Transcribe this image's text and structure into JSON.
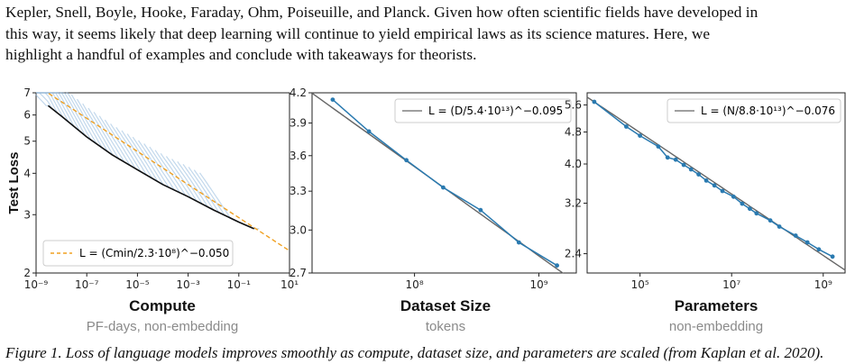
{
  "paragraph": {
    "line1": "Kepler, Snell, Boyle, Hooke, Faraday, Ohm, Poiseuille, and Planck. Given how often scientific fields have developed in",
    "line2": "this way, it seems likely that deep learning will continue to yield empirical laws as its science matures. Here, we",
    "line3": "highlight a handful of examples and conclude with takeaways for theorists."
  },
  "chart_data": [
    {
      "type": "line",
      "ylabel": "Test Loss",
      "xlabel": "Compute",
      "xsublabel": "PF-days, non-embedding",
      "xscale": "log",
      "yscale": "log",
      "xlim": [
        1e-09,
        10
      ],
      "ylim": [
        2,
        7
      ],
      "xticks": [
        "10⁻⁹",
        "10⁻⁷",
        "10⁻⁵",
        "10⁻³",
        "10⁻¹",
        "10¹"
      ],
      "yticks": [
        "2",
        "3",
        "4",
        "5",
        "6",
        "7"
      ],
      "legend": "L = (Cmin/2.3·10⁸)^−0.050",
      "legend_placement": "bottom-left",
      "fit": {
        "coef": 230000000.0,
        "exponent": -0.05,
        "color": "#f0a020"
      },
      "frontier": {
        "x": [
          3e-09,
          1e-08,
          1e-07,
          1e-06,
          1e-05,
          0.0001,
          0.001,
          0.01,
          0.1,
          0.4
        ],
        "y": [
          6.4,
          5.95,
          5.15,
          4.55,
          4.1,
          3.7,
          3.4,
          3.1,
          2.85,
          2.72
        ],
        "color": "#111111"
      },
      "curve_color": "#8fb8dc"
    },
    {
      "type": "line",
      "xlabel": "Dataset Size",
      "xsublabel": "tokens",
      "xscale": "log",
      "yscale": "log",
      "xlim": [
        15000000.0,
        2000000000.0
      ],
      "ylim": [
        2.7,
        4.2
      ],
      "xticks": [
        "10⁸",
        "10⁹"
      ],
      "yticks": [
        "2.7",
        "3.0",
        "3.3",
        "3.6",
        "3.9",
        "4.2"
      ],
      "legend": "L = (D/5.4·10¹³)^−0.095",
      "legend_placement": "top-right",
      "fit": {
        "coef": 54000000000000.0,
        "exponent": -0.095,
        "color": "#666666"
      },
      "series": [
        {
          "x": [
            22000000.0,
            43000000.0,
            86000000.0,
            170000000.0,
            340000000.0,
            690000000.0,
            1400000000.0
          ],
          "y": [
            4.13,
            3.82,
            3.56,
            3.33,
            3.15,
            2.91,
            2.75
          ],
          "color": "#2a7ab0"
        }
      ]
    },
    {
      "type": "line",
      "xlabel": "Parameters",
      "xsublabel": "non-embedding",
      "xscale": "log",
      "yscale": "log",
      "xlim": [
        7000.0,
        3000000000.0
      ],
      "ylim": [
        2.15,
        6.0
      ],
      "xticks": [
        "10⁵",
        "10⁷",
        "10⁹"
      ],
      "yticks": [
        "2.4",
        "3.2",
        "4.0",
        "4.8",
        "5.6"
      ],
      "legend": "L = (N/8.8·10¹³)^−0.076",
      "legend_placement": "top-right",
      "fit": {
        "coef": 88000000000000.0,
        "exponent": -0.076,
        "color": "#666666"
      },
      "series": [
        {
          "x": [
            10000.0,
            50000.0,
            100000.0,
            250000.0,
            400000.0,
            600000.0,
            900000.0,
            1300000.0,
            1900000.0,
            2800000.0,
            4200000.0,
            6300000.0,
            11000000.0,
            17000000.0,
            25000000.0,
            35000000.0,
            70000000.0,
            110000000.0,
            250000000.0,
            450000000.0,
            800000000.0,
            1600000000.0
          ],
          "y": [
            5.7,
            4.95,
            4.7,
            4.42,
            4.15,
            4.1,
            3.98,
            3.88,
            3.77,
            3.64,
            3.54,
            3.43,
            3.32,
            3.19,
            3.1,
            3.02,
            2.9,
            2.8,
            2.66,
            2.56,
            2.46,
            2.36
          ],
          "color": "#2a7ab0"
        }
      ]
    }
  ],
  "bottom_fragment": "Figure 1. Loss of language models improves smoothly as compute, dataset size, and parameters are scaled (from Kaplan et al. 2020)."
}
